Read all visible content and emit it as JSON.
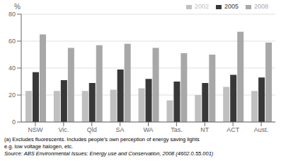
{
  "chart_data": {
    "type": "bar",
    "categories": [
      "NSW",
      "Vic.",
      "Qld",
      "SA",
      "WA",
      "Tas.",
      "NT",
      "ACT",
      "Aust."
    ],
    "series": [
      {
        "name": "2002",
        "color": "#c0c0c0",
        "values": [
          23,
          23,
          23,
          24,
          25,
          16,
          20,
          26,
          23
        ]
      },
      {
        "name": "2005",
        "color": "#383838",
        "values": [
          37,
          31,
          29,
          39,
          32,
          30,
          29,
          35,
          33
        ]
      },
      {
        "name": "2008",
        "color": "#a8a8a8",
        "values": [
          65,
          55,
          57,
          58,
          55,
          51,
          50,
          67,
          59
        ]
      }
    ],
    "y_label": "%",
    "ylim": [
      0,
      80
    ],
    "yticks": [
      0,
      20,
      40,
      60,
      80
    ],
    "grid": true,
    "legend": "upper right",
    "annotations": [
      "(a) Excludes fluorescents. Includes people's own perception of energy saving lights",
      "e.g. low voltage halogen, etc.",
      "Source: ABS Environmental Issues: Energy use and Conservation, 2008 (4602.0.55.001)"
    ]
  }
}
